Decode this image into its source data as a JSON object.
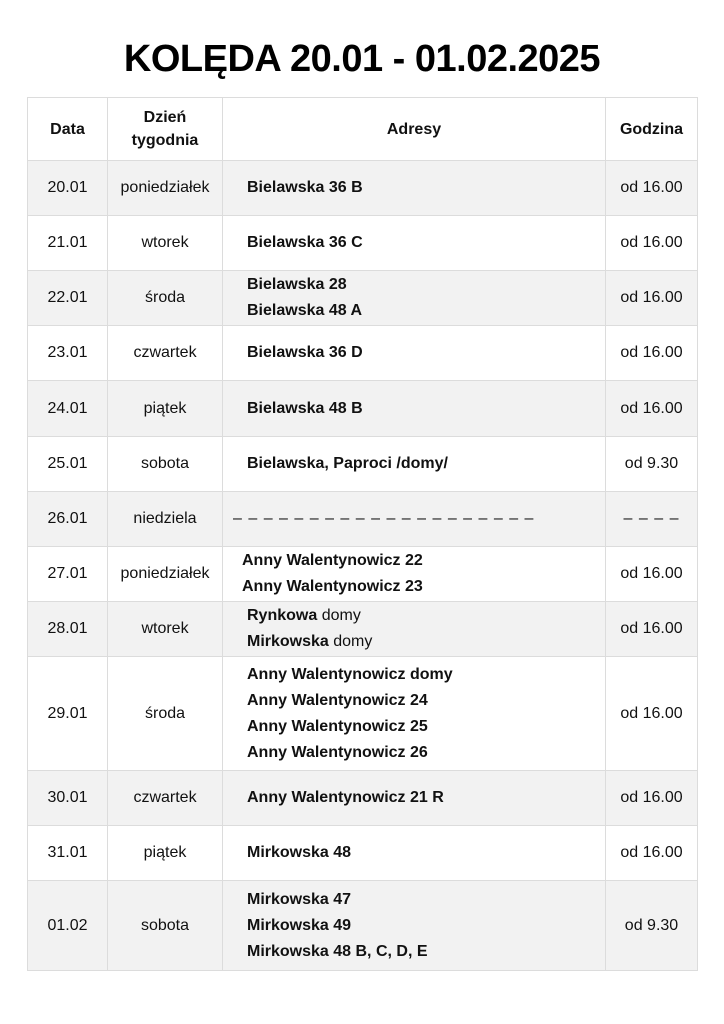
{
  "title": "KOLĘDA 20.01 - 01.02.2025",
  "headers": {
    "date": "Data",
    "day_line1": "Dzień",
    "day_line2": "tygodnia",
    "address": "Adresy",
    "time": "Godzina"
  },
  "rows": [
    {
      "date": "20.01",
      "day": "poniedziałek",
      "addresses": [
        {
          "bold": "Bielawska 36 B",
          "normal": ""
        }
      ],
      "time": "od 16.00"
    },
    {
      "date": "21.01",
      "day": "wtorek",
      "addresses": [
        {
          "bold": "Bielawska 36 C",
          "normal": ""
        }
      ],
      "time": "od 16.00"
    },
    {
      "date": "22.01",
      "day": "środa",
      "addresses": [
        {
          "bold": "Bielawska 28",
          "normal": ""
        },
        {
          "bold": "Bielawska 48 A",
          "normal": ""
        }
      ],
      "time": "od 16.00"
    },
    {
      "date": "23.01",
      "day": "czwartek",
      "addresses": [
        {
          "bold": "Bielawska 36 D",
          "normal": ""
        }
      ],
      "time": "od 16.00"
    },
    {
      "date": "24.01",
      "day": "piątek",
      "addresses": [
        {
          "bold": "Bielawska 48 B",
          "normal": ""
        }
      ],
      "time": "od 16.00"
    },
    {
      "date": "25.01",
      "day": "sobota",
      "addresses": [
        {
          "bold": "Bielawska, Paproci /domy/",
          "normal": ""
        }
      ],
      "time": "od 9.30"
    },
    {
      "date": "26.01",
      "day": "niedziela",
      "addresses": [
        {
          "bold": "",
          "normal": "– – – – – – – – – – – – – – – – – – – –"
        }
      ],
      "time": "– – – –"
    },
    {
      "date": "27.01",
      "day": "poniedziałek",
      "addresses": [
        {
          "bold": "Anny Walentynowicz 22",
          "normal": ""
        },
        {
          "bold": "Anny Walentynowicz 23",
          "normal": ""
        }
      ],
      "time": "od 16.00"
    },
    {
      "date": "28.01",
      "day": "wtorek",
      "addresses": [
        {
          "bold": "Rynkowa",
          "normal": " domy"
        },
        {
          "bold": "Mirkowska",
          "normal": " domy"
        }
      ],
      "time": "od 16.00"
    },
    {
      "date": "29.01",
      "day": "środa",
      "addresses": [
        {
          "bold": "Anny Walentynowicz domy",
          "normal": ""
        },
        {
          "bold": "Anny Walentynowicz 24",
          "normal": ""
        },
        {
          "bold": "Anny Walentynowicz 25",
          "normal": ""
        },
        {
          "bold": "Anny Walentynowicz 26",
          "normal": ""
        }
      ],
      "time": "od 16.00"
    },
    {
      "date": "30.01",
      "day": "czwartek",
      "addresses": [
        {
          "bold": "Anny Walentynowicz 21 R",
          "normal": ""
        }
      ],
      "time": "od 16.00"
    },
    {
      "date": "31.01",
      "day": "piątek",
      "addresses": [
        {
          "bold": "Mirkowska 48",
          "normal": ""
        }
      ],
      "time": "od 16.00"
    },
    {
      "date": "01.02",
      "day": "sobota",
      "addresses": [
        {
          "bold": "Mirkowska 47",
          "normal": ""
        },
        {
          "bold": "Mirkowska 49",
          "normal": ""
        },
        {
          "bold": "Mirkowska 48 B, C, D, E",
          "normal": ""
        }
      ],
      "time": "od 9.30"
    }
  ]
}
